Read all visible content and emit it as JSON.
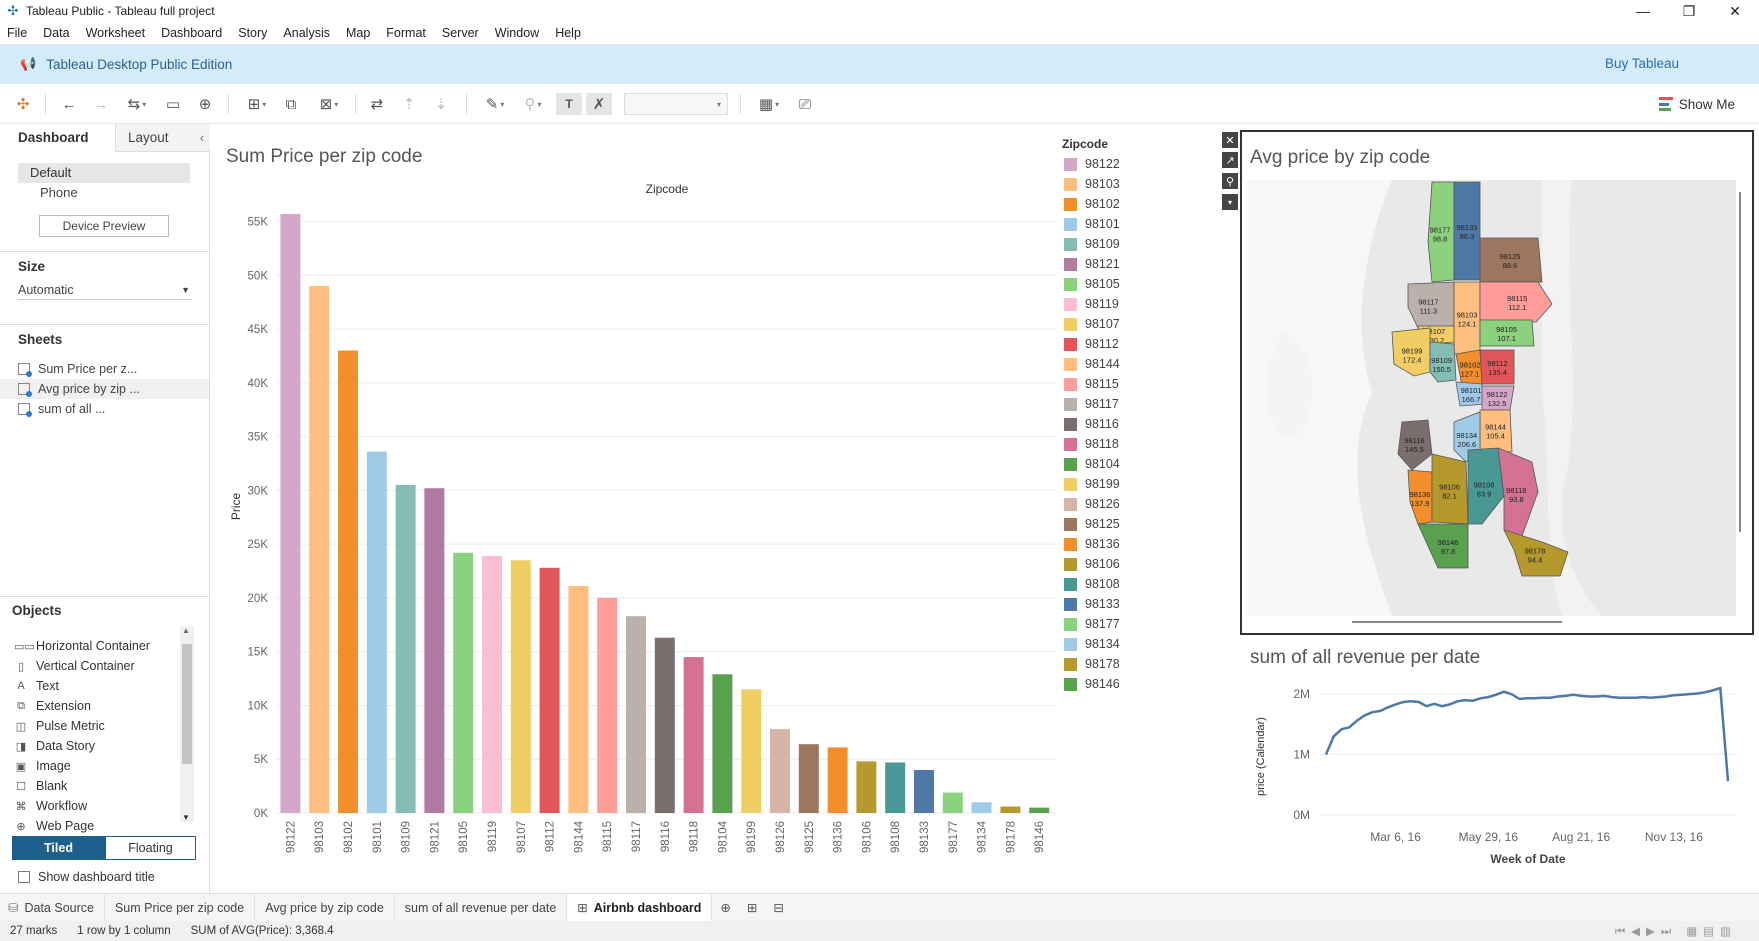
{
  "window": {
    "title": "Tableau Public - Tableau full project"
  },
  "menu": [
    "File",
    "Data",
    "Worksheet",
    "Dashboard",
    "Story",
    "Analysis",
    "Map",
    "Format",
    "Server",
    "Window",
    "Help"
  ],
  "banner": {
    "edition": "Tableau Desktop Public Edition",
    "buy": "Buy Tableau"
  },
  "toolbar": {
    "show_me": "Show Me"
  },
  "left_panel": {
    "tabs": [
      "Dashboard",
      "Layout"
    ],
    "devices": [
      "Default",
      "Phone"
    ],
    "device_preview": "Device Preview",
    "size_title": "Size",
    "size_value": "Automatic",
    "sheets_title": "Sheets",
    "sheets": [
      "Sum Price per z...",
      "Avg price by zip ...",
      "sum of all ..."
    ],
    "objects_title": "Objects",
    "objects": [
      {
        "icon": "horizontal-container-icon",
        "label": "Horizontal Container"
      },
      {
        "icon": "vertical-container-icon",
        "label": "Vertical Container"
      },
      {
        "icon": "text-icon",
        "label": "Text"
      },
      {
        "icon": "extension-icon",
        "label": "Extension"
      },
      {
        "icon": "pulse-metric-icon",
        "label": "Pulse Metric"
      },
      {
        "icon": "data-story-icon",
        "label": "Data Story"
      },
      {
        "icon": "image-icon",
        "label": "Image"
      },
      {
        "icon": "blank-icon",
        "label": "Blank"
      },
      {
        "icon": "workflow-icon",
        "label": "Workflow"
      },
      {
        "icon": "web-page-icon",
        "label": "Web Page"
      }
    ],
    "tiled": "Tiled",
    "floating": "Floating",
    "show_title": "Show dashboard title"
  },
  "legend": {
    "title": "Zipcode"
  },
  "chart_data": [
    {
      "type": "bar",
      "title": "Sum Price per zip code",
      "header": "Zipcode",
      "xlabel": "",
      "ylabel": "Price",
      "ylim": [
        0,
        57000
      ],
      "yticks": [
        0,
        5000,
        10000,
        15000,
        20000,
        25000,
        30000,
        35000,
        40000,
        45000,
        50000,
        55000
      ],
      "ytick_labels": [
        "0K",
        "5K",
        "10K",
        "15K",
        "20K",
        "25K",
        "30K",
        "35K",
        "40K",
        "45K",
        "50K",
        "55K"
      ],
      "categories": [
        "98122",
        "98103",
        "98102",
        "98101",
        "98109",
        "98121",
        "98105",
        "98119",
        "98107",
        "98112",
        "98144",
        "98115",
        "98117",
        "98116",
        "98118",
        "98104",
        "98199",
        "98126",
        "98125",
        "98136",
        "98106",
        "98108",
        "98133",
        "98177",
        "98134",
        "98178",
        "98146"
      ],
      "values": [
        55700,
        49000,
        43000,
        33600,
        30500,
        30200,
        24200,
        23900,
        23500,
        22800,
        21100,
        20000,
        18300,
        16300,
        14500,
        12900,
        11500,
        7800,
        6400,
        6100,
        4800,
        4700,
        4000,
        1900,
        1000,
        600,
        500
      ],
      "colors": [
        "#d4a6c8",
        "#ffbe7d",
        "#f28e2b",
        "#a0cbe8",
        "#86bcb6",
        "#b07aa1",
        "#8cd17d",
        "#fabfd2",
        "#f1ce63",
        "#e15759",
        "#ffbe7d",
        "#ff9d9a",
        "#bab0ac",
        "#79706e",
        "#d37295",
        "#59a14f",
        "#f1ce63",
        "#d7b5a6",
        "#9d7660",
        "#f28e2b",
        "#b6992d",
        "#499894",
        "#4e79a7",
        "#8cd17d",
        "#a0cbe8",
        "#b6992d",
        "#59a14f"
      ],
      "legend": "right"
    },
    {
      "type": "map",
      "title": "Avg price by zip code",
      "regions": [
        {
          "zip": "98177",
          "value": "98.8",
          "color": "#8cd17d"
        },
        {
          "zip": "98133",
          "value": "86.3",
          "color": "#4e79a7"
        },
        {
          "zip": "98125",
          "value": "88.6",
          "color": "#9d7660"
        },
        {
          "zip": "98117",
          "value": "111.3",
          "color": "#bab0ac"
        },
        {
          "zip": "98103",
          "value": "124.1",
          "color": "#ffbe7d"
        },
        {
          "zip": "98115",
          "value": "112.1",
          "color": "#ff9d9a"
        },
        {
          "zip": "98107",
          "value": "130.2",
          "color": "#f1ce63"
        },
        {
          "zip": "98105",
          "value": "107.1",
          "color": "#8cd17d"
        },
        {
          "zip": "98199",
          "value": "172.4",
          "color": "#f1ce63"
        },
        {
          "zip": "98109",
          "value": "150.5",
          "color": "#86bcb6"
        },
        {
          "zip": "98102",
          "value": "127.1",
          "color": "#f28e2b"
        },
        {
          "zip": "98112",
          "value": "135.4",
          "color": "#e15759"
        },
        {
          "zip": "98101",
          "value": "166.7",
          "color": "#a0cbe8"
        },
        {
          "zip": "98122",
          "value": "132.5",
          "color": "#d4a6c8"
        },
        {
          "zip": "98144",
          "value": "105.4",
          "color": "#ffbe7d"
        },
        {
          "zip": "98116",
          "value": "145.5",
          "color": "#79706e"
        },
        {
          "zip": "98134",
          "value": "206.6",
          "color": "#a0cbe8"
        },
        {
          "zip": "98136",
          "value": "137.9",
          "color": "#f28e2b"
        },
        {
          "zip": "98106",
          "value": "82.1",
          "color": "#b6992d"
        },
        {
          "zip": "98108",
          "value": "83.9",
          "color": "#499894"
        },
        {
          "zip": "98118",
          "value": "93.8",
          "color": "#d37295"
        },
        {
          "zip": "98146",
          "value": "97.8",
          "color": "#59a14f"
        },
        {
          "zip": "98178",
          "value": "94.4",
          "color": "#b6992d"
        }
      ]
    },
    {
      "type": "line",
      "title": "sum of all revenue per date",
      "xlabel": "Week of Date",
      "ylabel": "price (Calendar)",
      "ylim": [
        0,
        2200000
      ],
      "yticks": [
        0,
        1000000,
        2000000
      ],
      "ytick_labels": [
        "0M",
        "1M",
        "2M"
      ],
      "xtick_labels": [
        "Mar 6, 16",
        "May 29, 16",
        "Aug 21, 16",
        "Nov 13, 16"
      ],
      "xtick_weeks": [
        9,
        21,
        33,
        45
      ],
      "x_weeks": [
        0,
        1,
        2,
        3,
        4,
        5,
        6,
        7,
        8,
        9,
        10,
        11,
        12,
        13,
        14,
        15,
        16,
        17,
        18,
        19,
        20,
        21,
        22,
        23,
        24,
        25,
        26,
        27,
        28,
        29,
        30,
        31,
        32,
        33,
        34,
        35,
        36,
        37,
        38,
        39,
        40,
        41,
        42,
        43,
        44,
        45,
        46,
        47,
        48,
        49,
        50,
        51,
        52
      ],
      "series": [
        {
          "values": [
            1000000,
            1300000,
            1420000,
            1450000,
            1560000,
            1650000,
            1700000,
            1720000,
            1780000,
            1830000,
            1870000,
            1880000,
            1870000,
            1800000,
            1840000,
            1800000,
            1830000,
            1880000,
            1900000,
            1890000,
            1930000,
            1950000,
            1990000,
            2040000,
            2000000,
            1920000,
            1930000,
            1930000,
            1940000,
            1940000,
            1960000,
            1970000,
            1990000,
            1970000,
            1960000,
            1960000,
            1970000,
            1950000,
            1940000,
            1940000,
            1940000,
            1950000,
            1940000,
            1950000,
            1960000,
            1980000,
            1990000,
            2000000,
            2010000,
            2030000,
            2060000,
            2100000,
            560000
          ]
        }
      ],
      "color": "#4e79a7"
    }
  ],
  "tabs": {
    "data_source": "Data Source",
    "sheets": [
      "Sum Price per zip code",
      "Avg price by zip code",
      "sum of all revenue per date"
    ],
    "active": "Airbnb dashboard"
  },
  "status": {
    "marks": "27 marks",
    "rows": "1 row by 1 column",
    "sum": "SUM of AVG(Price): 3,368.4"
  }
}
